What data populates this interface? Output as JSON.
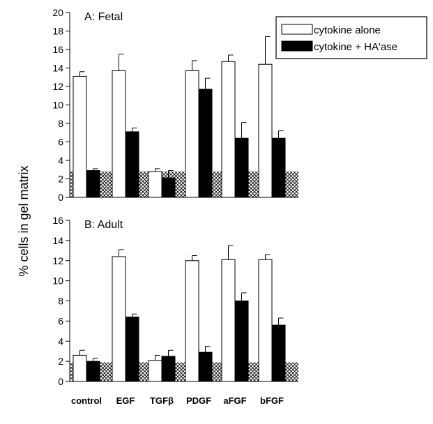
{
  "chart_data": {
    "type": "bar",
    "ylabel": "% cells in gel matrix",
    "categories": [
      "control",
      "EGF",
      "TGFβ",
      "PDGF",
      "aFGF",
      "bFGF"
    ],
    "legend": [
      "cytokine alone",
      "cytokine + HA'ase"
    ],
    "panels": [
      {
        "title": "A: Fetal",
        "ylim": [
          0,
          20
        ],
        "yticks": [
          0,
          2,
          4,
          6,
          8,
          10,
          12,
          14,
          16,
          18,
          20
        ],
        "baseline_band": 2.8,
        "series": [
          {
            "name": "cytokine alone",
            "values": [
              13.1,
              13.7,
              2.8,
              13.7,
              14.7,
              14.4
            ],
            "errors": [
              0.5,
              1.8,
              0.3,
              1.1,
              0.7,
              3.0
            ]
          },
          {
            "name": "cytokine + HA'ase",
            "values": [
              2.9,
              7.1,
              2.1,
              11.7,
              6.4,
              6.4
            ],
            "errors": [
              0.2,
              0.4,
              0.8,
              1.2,
              1.7,
              0.8
            ]
          }
        ]
      },
      {
        "title": "B: Adult",
        "ylim": [
          0,
          16
        ],
        "yticks": [
          0,
          2,
          4,
          6,
          8,
          10,
          12,
          14,
          16
        ],
        "baseline_band": 1.9,
        "series": [
          {
            "name": "cytokine alone",
            "values": [
              2.6,
              12.4,
              2.1,
              12.0,
              12.1,
              12.1
            ],
            "errors": [
              0.5,
              0.7,
              0.5,
              0.5,
              1.4,
              0.5
            ]
          },
          {
            "name": "cytokine + HA'ase",
            "values": [
              2.0,
              6.4,
              2.5,
              2.9,
              8.0,
              5.6
            ],
            "errors": [
              0.3,
              0.3,
              0.6,
              0.6,
              0.8,
              0.7
            ]
          }
        ]
      }
    ]
  }
}
